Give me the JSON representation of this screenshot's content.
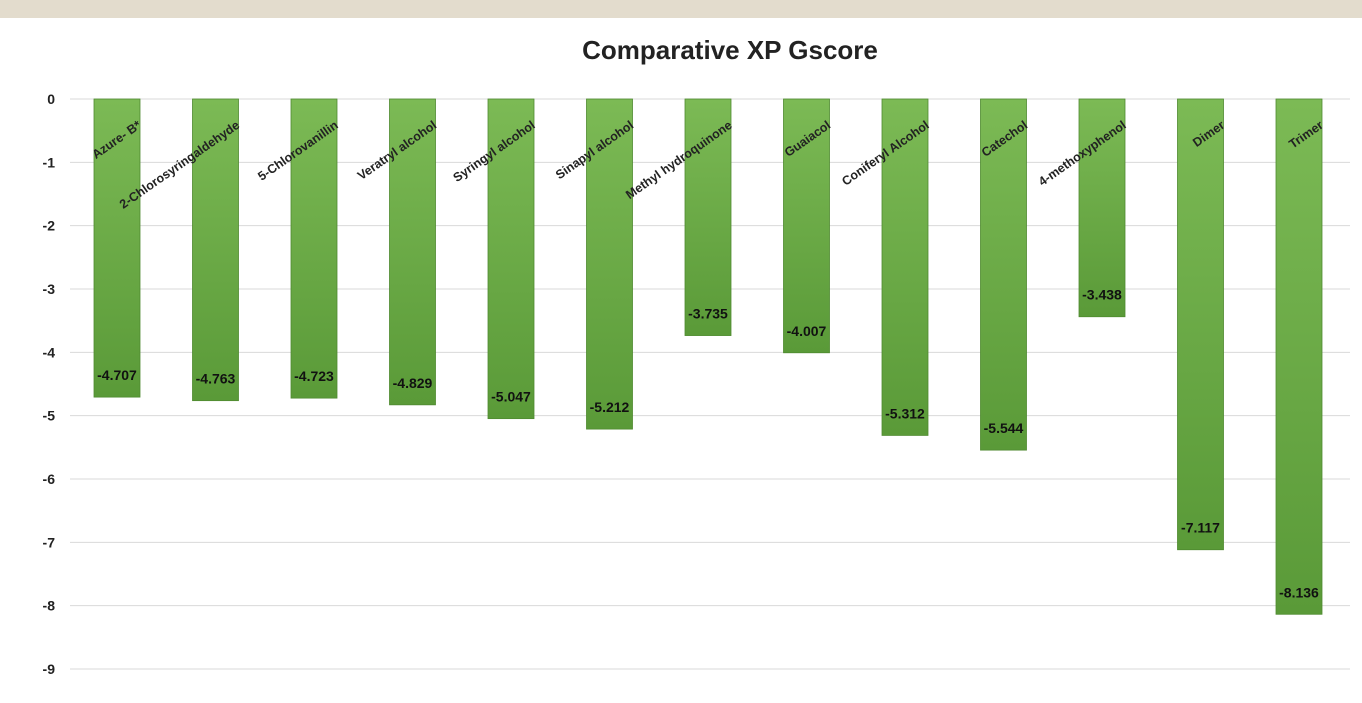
{
  "chart_data": {
    "type": "bar",
    "title": "Comparative XP Gscore",
    "xlabel": "",
    "ylabel": "",
    "categories": [
      "Azure- B*",
      "2-Chlorosyringaldehyde",
      "5-Chlorovanillin",
      "Veratryl alcohol",
      "Syringyl alcohol",
      "Sinapyl alcohol",
      "Methyl hydroquinone",
      "Guaiacol",
      "Coniferyl Alcohol",
      "Catechol",
      "4-methoxyphenol",
      "Dimer",
      "Trimer"
    ],
    "values": [
      -4.707,
      -4.763,
      -4.723,
      -4.829,
      -5.047,
      -5.212,
      -3.735,
      -4.007,
      -5.312,
      -5.544,
      -3.438,
      -7.117,
      -8.136
    ],
    "value_labels": [
      "-4.707",
      "-4.763",
      "-4.723",
      "-4.829",
      "-5.047",
      "-5.212",
      "-3.735",
      "-4.007",
      "-5.312",
      "-5.544",
      "-3.438",
      "-7.117",
      "-8.136"
    ],
    "ylim": [
      -9,
      0
    ],
    "yticks": [
      "0",
      "-1",
      "-2",
      "-3",
      "-4",
      "-5",
      "-6",
      "-7",
      "-8",
      "-9"
    ],
    "grid": true,
    "legend": "none",
    "colors": {
      "bar_top": "#7cba55",
      "bar_bottom": "#5a9a38",
      "bar_edge": "#4f8a30",
      "grid": "#d9d9d9"
    }
  }
}
